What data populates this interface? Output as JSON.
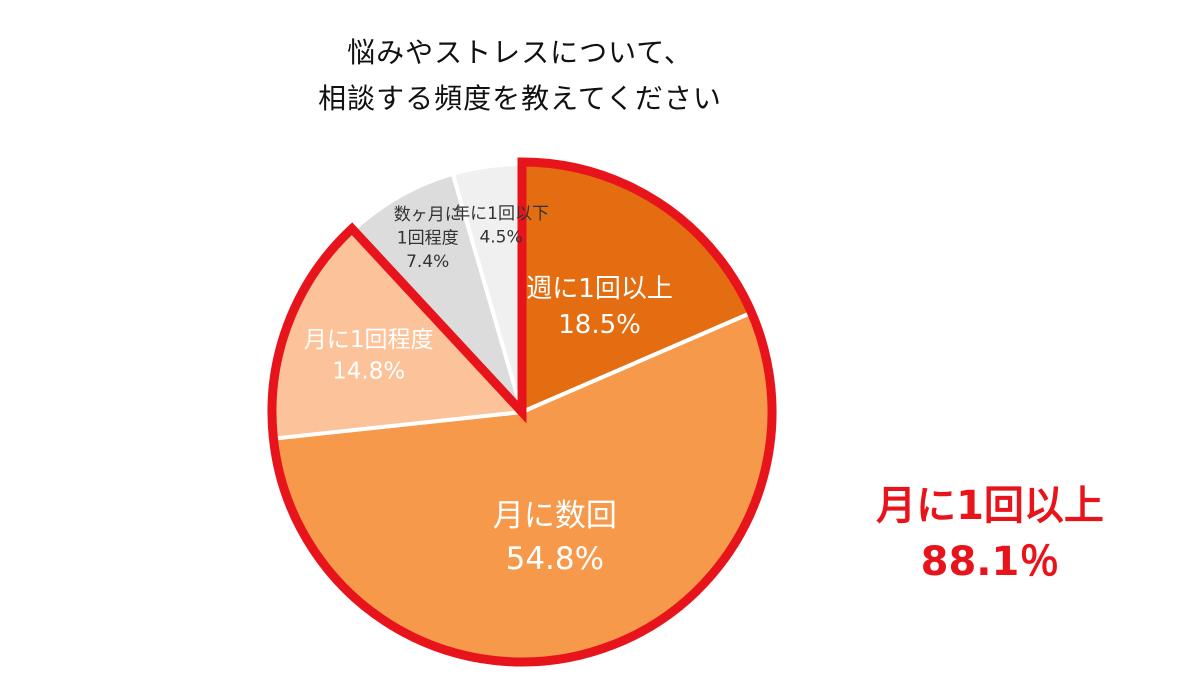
{
  "title_lines": [
    "悩みやストレスについて、",
    "相談する頻度を教えてください"
  ],
  "summary": {
    "label": "月に1回以上",
    "value": "88.1％"
  },
  "colors": {
    "highlight_border": "#e8141c",
    "separator": "#ffffff",
    "title_text": "#111111"
  },
  "chart_data": {
    "type": "pie",
    "start": "12 o'clock",
    "direction": "clockwise",
    "slices": [
      {
        "label": "週に1回以上",
        "value": 18.5,
        "display": "18.5%",
        "color": "#e46d12",
        "label_color": "#ffffff"
      },
      {
        "label": "月に数回",
        "value": 54.8,
        "display": "54.8%",
        "color": "#f6994b",
        "label_color": "#ffffff"
      },
      {
        "label": "月に1回程度",
        "value": 14.8,
        "display": "14.8%",
        "color": "#fcc39a",
        "label_color": "#ffffff"
      },
      {
        "label": "数ヶ月に1回程度",
        "value": 7.4,
        "display": "7.4%",
        "color": "#dcdcdc",
        "label_color": "#333333"
      },
      {
        "label": "年に1回以下",
        "value": 4.5,
        "display": "4.5%",
        "color": "#f0f0f0",
        "label_color": "#333333"
      }
    ],
    "highlighted_group": {
      "slices": [
        "週に1回以上",
        "月に数回",
        "月に1回程度"
      ],
      "total": "88.1％"
    }
  }
}
